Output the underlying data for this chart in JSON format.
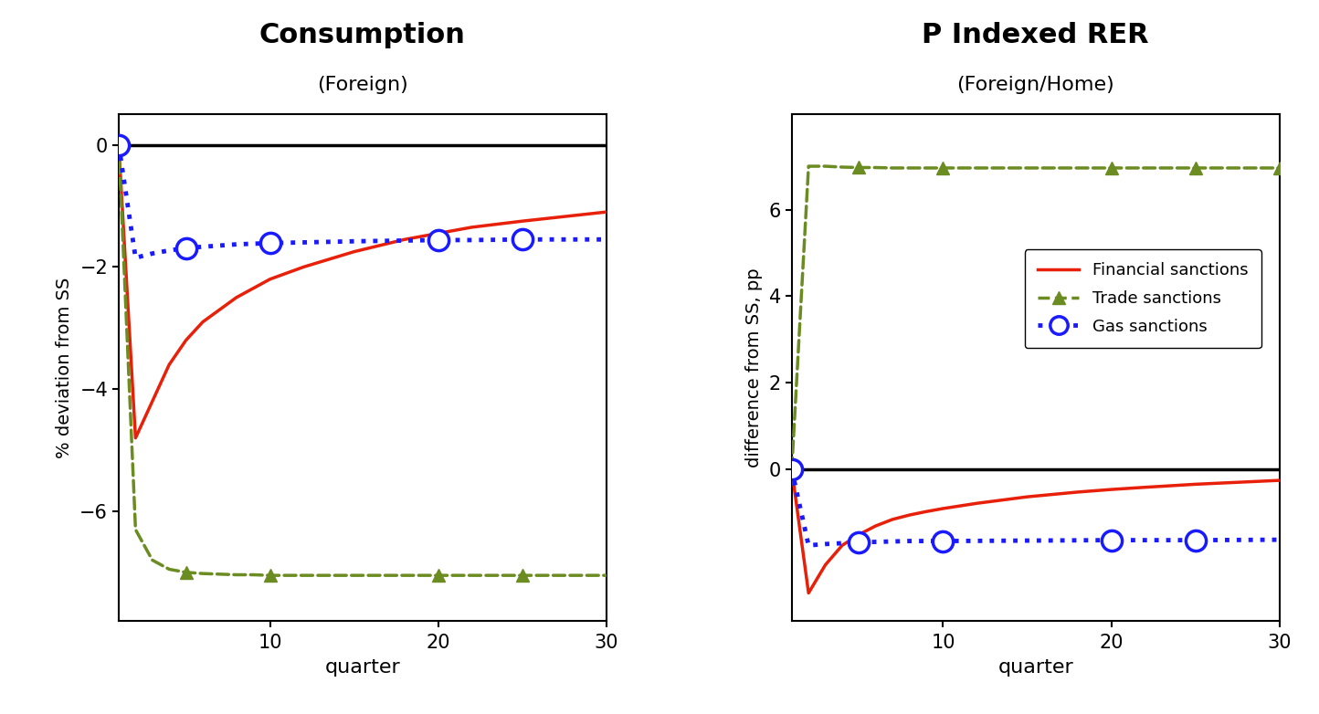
{
  "left_title": "Consumption",
  "left_subtitle": "(Foreign)",
  "left_ylabel": "% deviation from SS",
  "left_xlabel": "quarter",
  "right_title": "P Indexed RER",
  "right_subtitle": "(Foreign/Home)",
  "right_ylabel": "difference from SS, pp",
  "right_xlabel": "quarter",
  "legend_labels": [
    "Financial sanctions",
    "Trade sanctions",
    "Gas sanctions"
  ],
  "colors": {
    "financial": "#e8200a",
    "trade": "#6b8c21",
    "gas": "#1a1aff"
  },
  "left": {
    "financial_x": [
      1,
      2,
      3,
      4,
      5,
      6,
      7,
      8,
      9,
      10,
      12,
      15,
      18,
      20,
      22,
      25,
      30
    ],
    "financial_y": [
      0.0,
      -4.8,
      -4.2,
      -3.6,
      -3.2,
      -2.9,
      -2.7,
      -2.5,
      -2.35,
      -2.2,
      -2.0,
      -1.75,
      -1.55,
      -1.45,
      -1.35,
      -1.25,
      -1.1
    ],
    "trade_x": [
      1,
      2,
      3,
      4,
      5,
      6,
      7,
      8,
      9,
      10,
      15,
      20,
      25,
      30
    ],
    "trade_y": [
      0.0,
      -6.3,
      -6.8,
      -6.95,
      -7.0,
      -7.02,
      -7.03,
      -7.04,
      -7.04,
      -7.05,
      -7.05,
      -7.05,
      -7.05,
      -7.05
    ],
    "trade_marker_x": [
      1,
      5,
      10,
      20,
      25
    ],
    "trade_marker_y": [
      0.0,
      -7.0,
      -7.05,
      -7.05,
      -7.05
    ],
    "gas_x": [
      1,
      2,
      3,
      4,
      5,
      6,
      7,
      8,
      9,
      10,
      15,
      20,
      22,
      25,
      30
    ],
    "gas_y": [
      0.0,
      -1.85,
      -1.78,
      -1.73,
      -1.69,
      -1.67,
      -1.65,
      -1.63,
      -1.62,
      -1.61,
      -1.58,
      -1.56,
      -1.56,
      -1.55,
      -1.55
    ],
    "gas_marker_x": [
      1,
      5,
      10,
      20,
      25
    ],
    "gas_marker_y": [
      0.0,
      -1.69,
      -1.61,
      -1.56,
      -1.55
    ],
    "ylim": [
      -7.8,
      0.5
    ],
    "xlim": [
      1,
      30
    ],
    "yticks": [
      0,
      -2,
      -4,
      -6
    ],
    "xticks": [
      10,
      20,
      30
    ]
  },
  "right": {
    "financial_x": [
      1,
      2,
      3,
      4,
      5,
      6,
      7,
      8,
      9,
      10,
      12,
      15,
      18,
      20,
      22,
      25,
      30
    ],
    "financial_y": [
      0.0,
      -2.85,
      -2.2,
      -1.75,
      -1.5,
      -1.3,
      -1.15,
      -1.05,
      -0.97,
      -0.9,
      -0.78,
      -0.63,
      -0.52,
      -0.46,
      -0.41,
      -0.34,
      -0.25
    ],
    "trade_x": [
      1,
      2,
      3,
      4,
      5,
      6,
      7,
      8,
      9,
      10,
      15,
      20,
      25,
      30
    ],
    "trade_y": [
      0.0,
      7.0,
      7.0,
      6.98,
      6.97,
      6.97,
      6.96,
      6.96,
      6.96,
      6.96,
      6.96,
      6.96,
      6.96,
      6.96
    ],
    "trade_marker_x": [
      1,
      5,
      10,
      20,
      25,
      30
    ],
    "trade_marker_y": [
      0.0,
      6.97,
      6.96,
      6.96,
      6.96,
      6.96
    ],
    "gas_x": [
      1,
      2,
      3,
      4,
      5,
      6,
      7,
      8,
      9,
      10,
      15,
      20,
      22,
      25,
      30
    ],
    "gas_y": [
      0.0,
      -1.75,
      -1.72,
      -1.7,
      -1.68,
      -1.67,
      -1.66,
      -1.65,
      -1.65,
      -1.65,
      -1.64,
      -1.63,
      -1.63,
      -1.63,
      -1.62
    ],
    "gas_marker_x": [
      1,
      5,
      10,
      20,
      25
    ],
    "gas_marker_y": [
      0.0,
      -1.68,
      -1.65,
      -1.63,
      -1.63
    ],
    "ylim": [
      -3.5,
      8.2
    ],
    "xlim": [
      1,
      30
    ],
    "yticks": [
      0,
      2,
      4,
      6
    ],
    "xticks": [
      10,
      20,
      30
    ]
  }
}
